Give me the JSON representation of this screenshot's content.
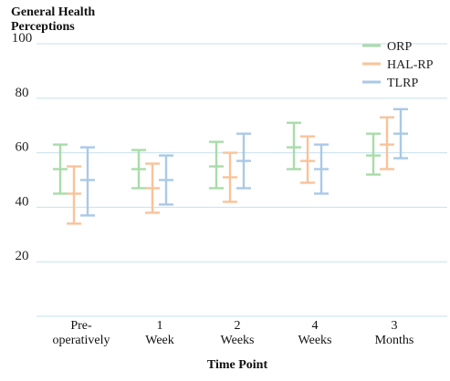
{
  "chart_data": {
    "type": "errorbar",
    "title": "General Health\nPerceptions",
    "xlabel": "Time Point",
    "ylabel": "",
    "ylim": [
      0,
      100
    ],
    "yticks": [
      20,
      40,
      60,
      80,
      100
    ],
    "grid": "horizontal",
    "legend_position": "top-right",
    "categories": [
      "Pre-\noperatively",
      "1\nWeek",
      "2\nWeeks",
      "4\nWeeks",
      "3\nMonths"
    ],
    "series": [
      {
        "name": "ORP",
        "color": "#a8dca8",
        "mean": [
          54,
          54,
          55,
          62,
          59
        ],
        "low": [
          45,
          47,
          47,
          54,
          52
        ],
        "high": [
          63,
          61,
          64,
          71,
          67
        ]
      },
      {
        "name": "HAL-RP",
        "color": "#f8c39a",
        "mean": [
          45,
          47,
          51,
          57,
          63
        ],
        "low": [
          34,
          38,
          42,
          49,
          54
        ],
        "high": [
          55,
          56,
          60,
          66,
          73
        ]
      },
      {
        "name": "TLRP",
        "color": "#a9c9e6",
        "mean": [
          50,
          50,
          57,
          54,
          67
        ],
        "low": [
          37,
          41,
          47,
          45,
          58
        ],
        "high": [
          62,
          59,
          67,
          63,
          76
        ]
      }
    ]
  }
}
